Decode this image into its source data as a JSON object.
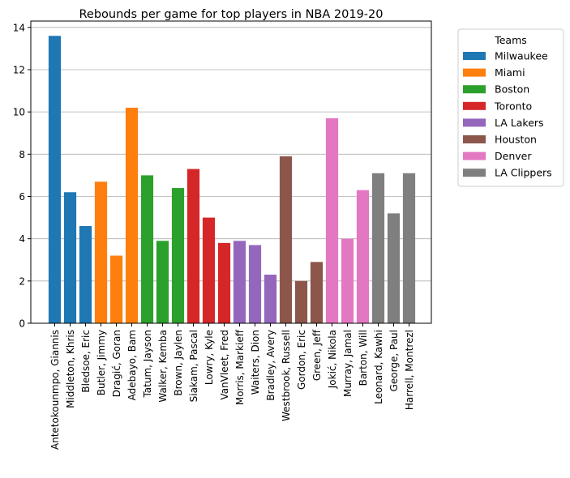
{
  "chart_data": {
    "type": "bar",
    "title": "Rebounds per game for top players in NBA 2019-20",
    "xlabel": "",
    "ylabel": "",
    "ylim": [
      0,
      14.3
    ],
    "yticks": [
      0,
      2,
      4,
      6,
      8,
      10,
      12,
      14
    ],
    "grid": "horizontal",
    "legend_title": "Teams",
    "legend_placement": "outside-top-right",
    "teams": [
      {
        "name": "Milwaukee",
        "color": "#1f77b4"
      },
      {
        "name": "Miami",
        "color": "#ff7f0e"
      },
      {
        "name": "Boston",
        "color": "#2ca02c"
      },
      {
        "name": "Toronto",
        "color": "#d62728"
      },
      {
        "name": "LA Lakers",
        "color": "#9467bd"
      },
      {
        "name": "Houston",
        "color": "#8c564b"
      },
      {
        "name": "Denver",
        "color": "#e377c2"
      },
      {
        "name": "LA Clippers",
        "color": "#7f7f7f"
      }
    ],
    "categories": [
      "Antetokounmpo, Giannis",
      "Middleton, Khris",
      "Bledsoe, Eric",
      "Butler, Jimmy",
      "Dragić, Goran",
      "Adebayo, Bam",
      "Tatum, Jayson",
      "Walker, Kemba",
      "Brown, Jaylen",
      "Siakam, Pascal",
      "Lowry, Kyle",
      "VanVleet, Fred",
      "Morris, Markieff",
      "Waiters, Dion",
      "Bradley, Avery",
      "Westbrook, Russell",
      "Gordon, Eric",
      "Green, Jeff",
      "Jokić, Nikola",
      "Murray, Jamal",
      "Barton, Will",
      "Leonard, Kawhi",
      "George, Paul",
      "Harrell, Montrezl"
    ],
    "values": [
      13.6,
      6.2,
      4.6,
      6.7,
      3.2,
      10.2,
      7.0,
      3.9,
      6.4,
      7.3,
      5.0,
      3.8,
      3.9,
      3.7,
      2.3,
      7.9,
      2.0,
      2.9,
      9.7,
      4.0,
      6.3,
      7.1,
      5.2,
      7.1
    ],
    "team_of_player": [
      0,
      0,
      0,
      1,
      1,
      1,
      2,
      2,
      2,
      3,
      3,
      3,
      4,
      4,
      4,
      5,
      5,
      5,
      6,
      6,
      6,
      7,
      7,
      7
    ]
  }
}
